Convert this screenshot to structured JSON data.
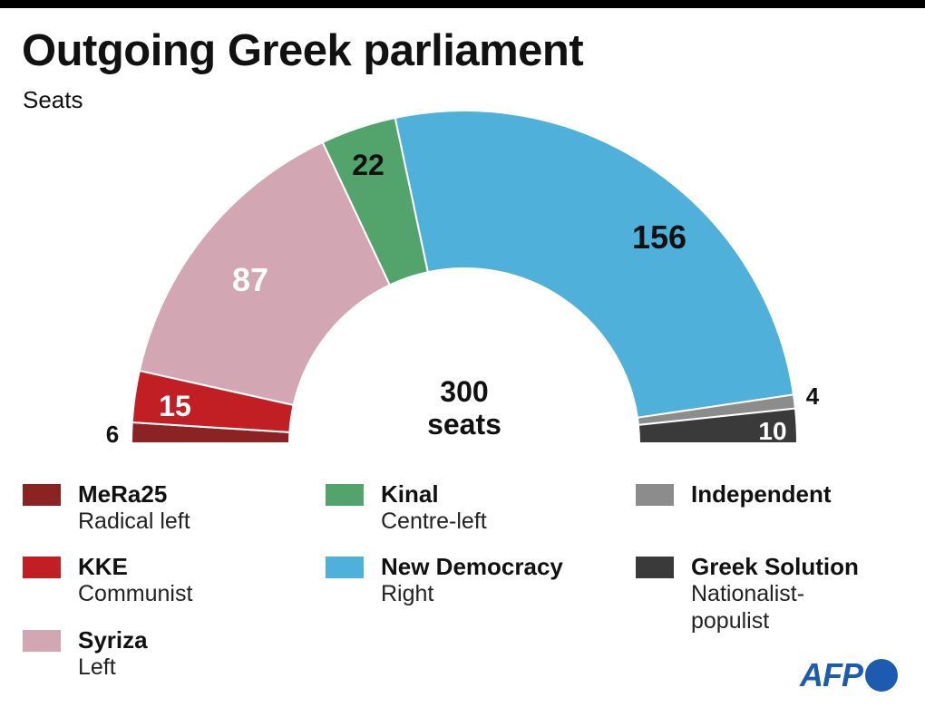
{
  "header": {
    "title": "Outgoing Greek parliament",
    "subtitle": "Seats"
  },
  "center_label": {
    "line1": "300",
    "line2": "seats"
  },
  "chart_data": {
    "type": "pie",
    "variant": "semicircle-parliament",
    "title": "Outgoing Greek parliament",
    "subtitle": "Seats",
    "total": 300,
    "total_label": "300 seats",
    "categories": [
      "MeRa25",
      "KKE",
      "Syriza",
      "Kinal",
      "New Democracy",
      "Independent",
      "Greek Solution"
    ],
    "values": [
      6,
      15,
      87,
      22,
      156,
      4,
      10
    ],
    "descriptions": [
      "Radical left",
      "Communist",
      "Left",
      "Centre-left",
      "Right",
      "",
      "Nationalist-populist"
    ],
    "colors": [
      "#8b2323",
      "#c21f24",
      "#d2a6b2",
      "#52a46c",
      "#4fb0d9",
      "#8c8c8c",
      "#3a3a3a"
    ],
    "legend_position": "bottom"
  },
  "slice_labels": [
    "6",
    "15",
    "87",
    "22",
    "156",
    "4",
    "10"
  ],
  "legend": {
    "items": [
      {
        "name": "MeRa25",
        "desc": "Radical left",
        "color": "#8b2323"
      },
      {
        "name": "KKE",
        "desc": "Communist",
        "color": "#c21f24"
      },
      {
        "name": "Syriza",
        "desc": "Left",
        "color": "#d2a6b2"
      },
      {
        "name": "Kinal",
        "desc": "Centre-left",
        "color": "#52a46c"
      },
      {
        "name": "New Democracy",
        "desc": "Right",
        "color": "#4fb0d9"
      },
      {
        "name": "Independent",
        "desc": "",
        "color": "#8c8c8c"
      },
      {
        "name": "Greek Solution",
        "desc": "Nationalist-\npopulist",
        "color": "#3a3a3a"
      }
    ]
  },
  "logo": {
    "text": "AFP"
  }
}
